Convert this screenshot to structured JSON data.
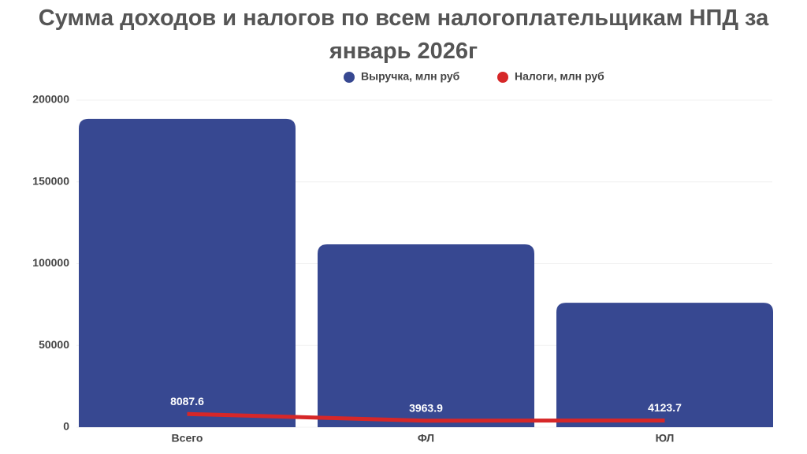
{
  "chart_data": {
    "type": "bar",
    "title": "Сумма доходов и налогов по всем налогоплательщикам НПД за январь 2026г",
    "categories": [
      "Всего",
      "ФЛ",
      "ЮЛ"
    ],
    "series": [
      {
        "name": "Выручка, млн руб",
        "type": "bar",
        "color": "#374891",
        "values": [
          188500,
          111800,
          76100
        ]
      },
      {
        "name": "Налоги, млн руб",
        "type": "line",
        "color": "#d62728",
        "values": [
          8087.6,
          3963.9,
          4123.7
        ]
      }
    ],
    "ylim": [
      0,
      200000
    ],
    "yticks": [
      0,
      50000,
      100000,
      150000,
      200000
    ],
    "grid": true
  }
}
